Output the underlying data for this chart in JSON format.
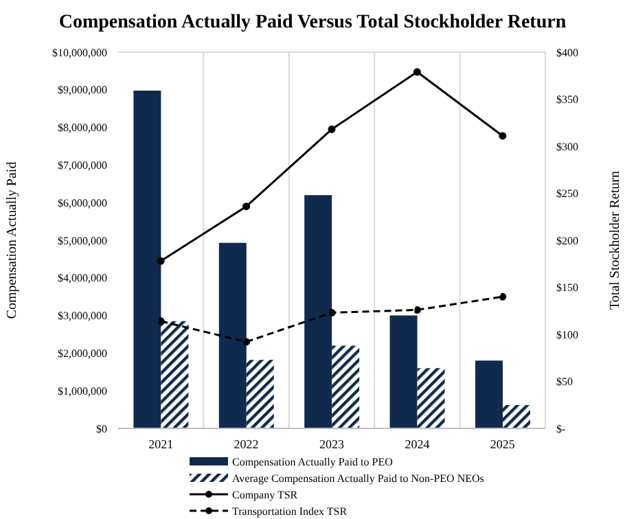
{
  "chart_data": {
    "type": "bar",
    "title": "Compensation Actually Paid Versus Total Stockholder Return",
    "ylabel": "Compensation Actually Paid",
    "y2label": "Total Stockholder Return",
    "categories": [
      "2021",
      "2022",
      "2023",
      "2024",
      "2025"
    ],
    "series": [
      {
        "name": "Compensation Actually Paid to PEO",
        "color": "#0f2a4d",
        "values": [
          8980000,
          4930000,
          6200000,
          3000000,
          1800000
        ]
      },
      {
        "name": "Average Compensation Actually Paid to Non-PEO NEOs",
        "color": "#0f2a4d",
        "values": [
          2850000,
          1820000,
          2200000,
          1600000,
          620000
        ]
      },
      {
        "name": "Company TSR",
        "type": "line",
        "axis": "y2",
        "color": "#000000",
        "line_style": "solid",
        "marker": "circle",
        "values": [
          178,
          236,
          318,
          379,
          311
        ]
      },
      {
        "name": "Transportation Index TSR",
        "type": "line",
        "axis": "y2",
        "color": "#000000",
        "line_style": "dashed",
        "marker": "circle",
        "values": [
          114,
          92,
          123,
          126,
          140
        ]
      }
    ],
    "ylim": [
      0,
      10000000
    ],
    "yticks": [
      {
        "value": 0,
        "label": "$0"
      },
      {
        "value": 1000000,
        "label": "$1,000,000"
      },
      {
        "value": 2000000,
        "label": "$2,000,000"
      },
      {
        "value": 3000000,
        "label": "$3,000,000"
      },
      {
        "value": 4000000,
        "label": "$4,000,000"
      },
      {
        "value": 5000000,
        "label": "$5,000,000"
      },
      {
        "value": 6000000,
        "label": "$6,000,000"
      },
      {
        "value": 7000000,
        "label": "$7,000,000"
      },
      {
        "value": 8000000,
        "label": "$8,000,000"
      },
      {
        "value": 9000000,
        "label": "$9,000,000"
      },
      {
        "value": 10000000,
        "label": "$10,000,000"
      }
    ],
    "y2lim": [
      0,
      400
    ],
    "y2ticks": [
      {
        "value": 0,
        "label": "$-"
      },
      {
        "value": 50,
        "label": "$50"
      },
      {
        "value": 100,
        "label": "$100"
      },
      {
        "value": 150,
        "label": "$150"
      },
      {
        "value": 200,
        "label": "$200"
      },
      {
        "value": 250,
        "label": "$250"
      },
      {
        "value": 300,
        "label": "$300"
      },
      {
        "value": 350,
        "label": "$350"
      },
      {
        "value": 400,
        "label": "$400"
      }
    ],
    "grid": true,
    "legend": "bottom"
  }
}
